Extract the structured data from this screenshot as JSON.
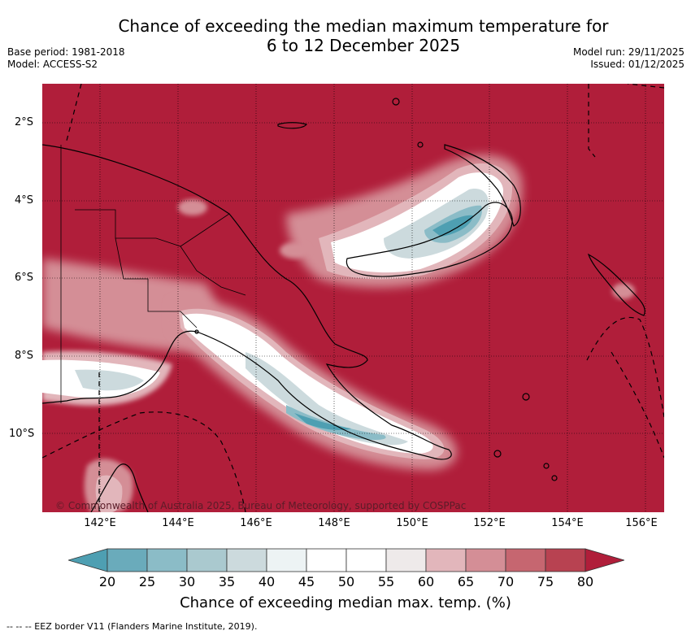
{
  "title": {
    "line1": "Chance of exceeding the median maximum temperature for",
    "line2": "6 to 12 December 2025"
  },
  "meta": {
    "base_period": "Base period: 1981-2018",
    "model": "Model: ACCESS-S2",
    "model_run": "Model run: 29/11/2025",
    "issued": "Issued: 01/12/2025"
  },
  "map": {
    "lat_labels": [
      "2°S",
      "4°S",
      "6°S",
      "8°S",
      "10°S"
    ],
    "lon_labels": [
      "142°E",
      "144°E",
      "146°E",
      "148°E",
      "150°E",
      "152°E",
      "154°E",
      "156°E"
    ],
    "copyright": "© Commonwealth of Australia 2025, Bureau of Meteorology, supported by COSPPac",
    "colors": {
      "ocean_high": "#b01e3a",
      "blue_low": "#4e9fb2"
    }
  },
  "colorbar": {
    "ticks": [
      "20",
      "25",
      "30",
      "35",
      "40",
      "45",
      "50",
      "55",
      "60",
      "65",
      "70",
      "75",
      "80"
    ],
    "label": "Chance of exceeding median max. temp. (%)",
    "colors": [
      "#4e9fb2",
      "#6aabbb",
      "#8bbcc7",
      "#aac9cf",
      "#ccdadd",
      "#edf3f4",
      "#ffffff",
      "#ffffff",
      "#eeeaea",
      "#e2b6bb",
      "#d48e96",
      "#c66670",
      "#b84251",
      "#b01e3a"
    ]
  },
  "footer": {
    "eez_note": "-- -- -- EEZ border V11 (Flanders Marine Institute, 2019)."
  }
}
